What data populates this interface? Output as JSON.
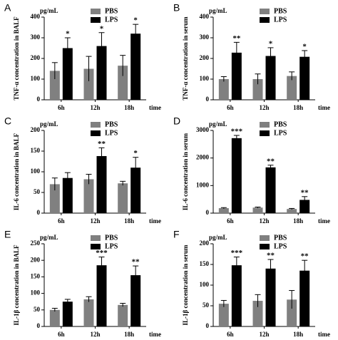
{
  "chart_data": [
    {
      "type": "bar",
      "panel": "A",
      "unit": "pg/mL",
      "y_label": "TNF-α concentration in BALF",
      "x_label": "time",
      "categories": [
        "6h",
        "12h",
        "18h"
      ],
      "ylim": [
        0,
        400
      ],
      "yticks": [
        0,
        100,
        200,
        300,
        400
      ],
      "series": [
        {
          "name": "PBS",
          "color": "#808080",
          "values": [
            140,
            150,
            165
          ],
          "errors": [
            40,
            60,
            50
          ]
        },
        {
          "name": "LPS",
          "color": "#000000",
          "values": [
            250,
            260,
            320
          ],
          "errors": [
            50,
            65,
            45
          ]
        }
      ],
      "annotations": [
        "*",
        "*",
        "*"
      ]
    },
    {
      "type": "bar",
      "panel": "B",
      "unit": "pg/mL",
      "y_label": "TNF-α concentration in serum",
      "x_label": "time",
      "categories": [
        "6h",
        "12h",
        "18h"
      ],
      "ylim": [
        0,
        400
      ],
      "yticks": [
        0,
        100,
        200,
        300,
        400
      ],
      "series": [
        {
          "name": "PBS",
          "color": "#808080",
          "values": [
            100,
            100,
            115
          ],
          "errors": [
            12,
            25,
            20
          ]
        },
        {
          "name": "LPS",
          "color": "#000000",
          "values": [
            228,
            212,
            208
          ],
          "errors": [
            50,
            40,
            30
          ]
        }
      ],
      "annotations": [
        "**",
        "*",
        "*"
      ]
    },
    {
      "type": "bar",
      "panel": "C",
      "unit": "pg/mL",
      "y_label": "IL-6 concentration in BALF",
      "x_label": "time",
      "categories": [
        "6h",
        "12h",
        "18h"
      ],
      "ylim": [
        0,
        200
      ],
      "yticks": [
        0,
        50,
        100,
        150,
        200
      ],
      "series": [
        {
          "name": "PBS",
          "color": "#808080",
          "values": [
            70,
            82,
            72
          ],
          "errors": [
            15,
            12,
            5
          ]
        },
        {
          "name": "LPS",
          "color": "#000000",
          "values": [
            85,
            138,
            110
          ],
          "errors": [
            13,
            20,
            25
          ]
        }
      ],
      "annotations": [
        null,
        "**",
        "*"
      ]
    },
    {
      "type": "bar",
      "panel": "D",
      "unit": "pg/mL",
      "y_label": "IL-6 concentration in serum",
      "x_label": "time",
      "categories": [
        "6h",
        "12h",
        "18h"
      ],
      "ylim": [
        0,
        3000
      ],
      "yticks": [
        0,
        1000,
        2000,
        3000
      ],
      "series": [
        {
          "name": "PBS",
          "color": "#808080",
          "values": [
            180,
            200,
            150
          ],
          "errors": [
            20,
            20,
            20
          ]
        },
        {
          "name": "LPS",
          "color": "#000000",
          "values": [
            2720,
            1660,
            480
          ],
          "errors": [
            100,
            80,
            120
          ]
        }
      ],
      "annotations": [
        "***",
        "**",
        "**"
      ]
    },
    {
      "type": "bar",
      "panel": "E",
      "unit": "pg/mL",
      "y_label": "IL-1β concentration in BALF",
      "x_label": "time",
      "categories": [
        "6h",
        "12h",
        "18h"
      ],
      "ylim": [
        0,
        250
      ],
      "yticks": [
        0,
        50,
        100,
        150,
        200,
        250
      ],
      "series": [
        {
          "name": "PBS",
          "color": "#808080",
          "values": [
            50,
            82,
            65
          ],
          "errors": [
            5,
            8,
            5
          ]
        },
        {
          "name": "LPS",
          "color": "#000000",
          "values": [
            75,
            185,
            155
          ],
          "errors": [
            7,
            25,
            28
          ]
        }
      ],
      "annotations": [
        null,
        "***",
        "**"
      ]
    },
    {
      "type": "bar",
      "panel": "F",
      "unit": "pg/mL",
      "y_label": "IL-1β concentration in serum",
      "x_label": "time",
      "categories": [
        "6h",
        "12h",
        "18h"
      ],
      "ylim": [
        0,
        200
      ],
      "yticks": [
        0,
        50,
        100,
        150,
        200
      ],
      "series": [
        {
          "name": "PBS",
          "color": "#808080",
          "values": [
            55,
            62,
            65
          ],
          "errors": [
            8,
            15,
            22
          ]
        },
        {
          "name": "LPS",
          "color": "#000000",
          "values": [
            148,
            140,
            135
          ],
          "errors": [
            20,
            22,
            25
          ]
        }
      ],
      "annotations": [
        "***",
        "**",
        "**"
      ]
    }
  ]
}
